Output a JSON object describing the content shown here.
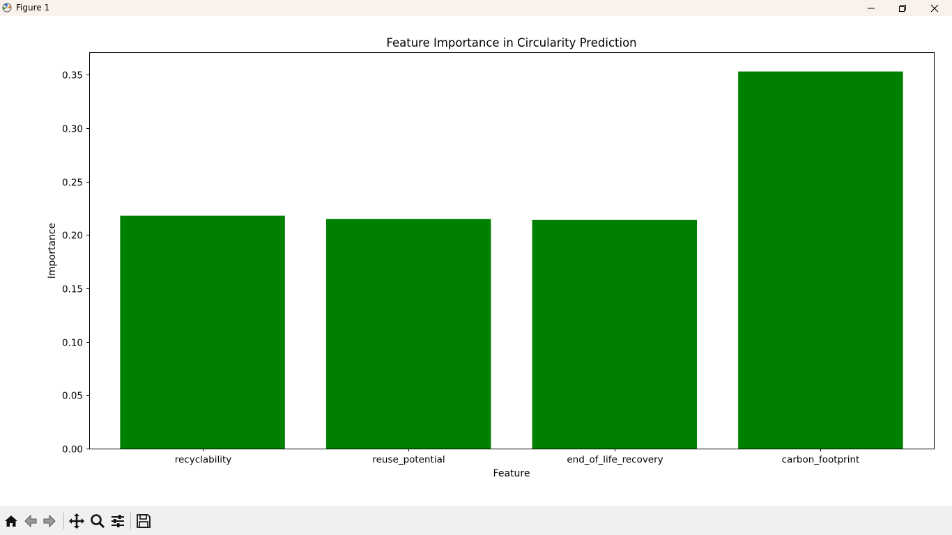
{
  "window": {
    "title": "Figure 1"
  },
  "toolbar": {
    "icons": [
      "home-icon",
      "back-icon",
      "forward-icon",
      "pan-icon",
      "zoom-icon",
      "configure-subplots-icon",
      "save-icon"
    ]
  },
  "chart_data": {
    "type": "bar",
    "title": "Feature Importance in Circularity Prediction",
    "xlabel": "Feature",
    "ylabel": "Importance",
    "categories": [
      "recyclability",
      "reuse_potential",
      "end_of_life_recovery",
      "carbon_footprint"
    ],
    "values": [
      0.218,
      0.215,
      0.214,
      0.353
    ],
    "ylim": [
      0,
      0.371
    ],
    "yticks": [
      0.0,
      0.05,
      0.1,
      0.15,
      0.2,
      0.25,
      0.3,
      0.35
    ],
    "ytick_labels": [
      "0.00",
      "0.05",
      "0.10",
      "0.15",
      "0.20",
      "0.25",
      "0.30",
      "0.35"
    ],
    "bar_color": "#008000",
    "grid": false,
    "legend": "none"
  }
}
